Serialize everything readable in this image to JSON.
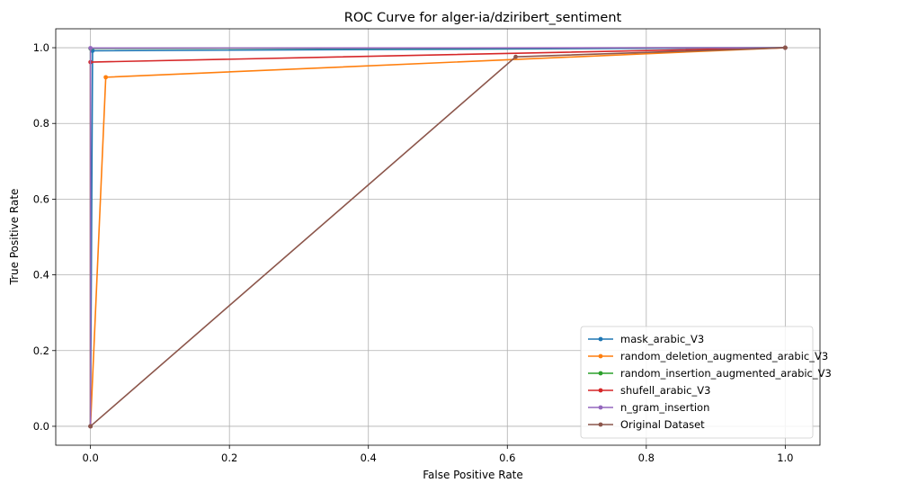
{
  "chart_data": {
    "type": "line",
    "title": "ROC Curve for alger-ia/dziribert_sentiment",
    "xlabel": "False Positive Rate",
    "ylabel": "True Positive Rate",
    "xlim": [
      -0.05,
      1.05
    ],
    "ylim": [
      -0.05,
      1.05
    ],
    "xticks": [
      0.0,
      0.2,
      0.4,
      0.6,
      0.8,
      1.0
    ],
    "yticks": [
      0.0,
      0.2,
      0.4,
      0.6,
      0.8,
      1.0
    ],
    "xtick_labels": [
      "0.0",
      "0.2",
      "0.4",
      "0.6",
      "0.8",
      "1.0"
    ],
    "ytick_labels": [
      "0.0",
      "0.2",
      "0.4",
      "0.6",
      "0.8",
      "1.0"
    ],
    "grid": true,
    "legend_position": "lower-right",
    "series": [
      {
        "name": "mask_arabic_V3",
        "color": "#1f77b4",
        "x": [
          0.0,
          0.003,
          1.0
        ],
        "y": [
          0.0,
          0.992,
          1.0
        ]
      },
      {
        "name": "random_deletion_augmented_arabic_V3",
        "color": "#ff7f0e",
        "x": [
          0.0,
          0.022,
          1.0
        ],
        "y": [
          0.0,
          0.922,
          1.0
        ]
      },
      {
        "name": "random_insertion_augmented_arabic_V3",
        "color": "#2ca02c",
        "x": [
          0.0,
          0.0,
          1.0
        ],
        "y": [
          0.0,
          0.998,
          1.0
        ]
      },
      {
        "name": "shufell_arabic_V3",
        "color": "#d62728",
        "x": [
          0.0,
          0.0,
          1.0
        ],
        "y": [
          0.0,
          0.962,
          1.0
        ]
      },
      {
        "name": "n_gram_insertion",
        "color": "#9467bd",
        "x": [
          0.0,
          0.0,
          1.0
        ],
        "y": [
          0.0,
          0.999,
          1.0
        ]
      },
      {
        "name": "Original Dataset",
        "color": "#8c564b",
        "x": [
          0.0,
          0.612,
          1.0
        ],
        "y": [
          0.0,
          0.976,
          1.0
        ]
      }
    ]
  }
}
